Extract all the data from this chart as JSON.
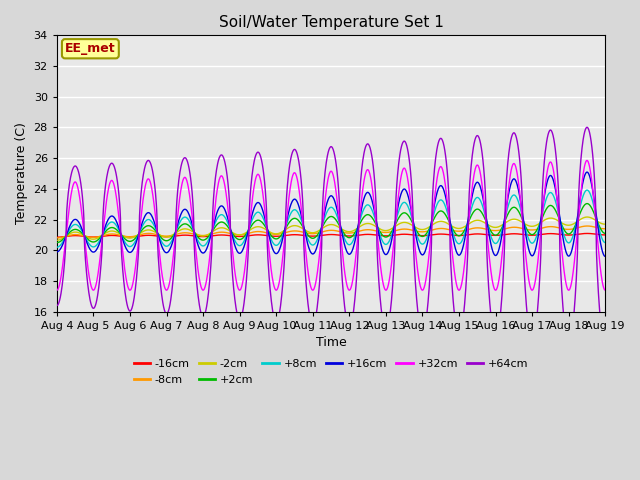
{
  "title": "Soil/Water Temperature Set 1",
  "xlabel": "Time",
  "ylabel": "Temperature (C)",
  "ylim": [
    16,
    34
  ],
  "yticks": [
    16,
    18,
    20,
    22,
    24,
    26,
    28,
    30,
    32,
    34
  ],
  "series_colors": {
    "-16cm": "#ff0000",
    "-8cm": "#ff9900",
    "-2cm": "#cccc00",
    "+2cm": "#00bb00",
    "+8cm": "#00cccc",
    "+16cm": "#0000dd",
    "+32cm": "#ff00ff",
    "+64cm": "#9900cc"
  },
  "watermark": "EE_met",
  "fig_bg": "#d8d8d8",
  "plot_bg": "#e8e8e8",
  "grid_color": "#ffffff",
  "xtick_labels": [
    "Aug 4",
    "Aug 5",
    "Aug 6",
    "Aug 7",
    "Aug 8",
    "Aug 9",
    "Aug 10",
    "Aug 11",
    "Aug 12",
    "Aug 13",
    "Aug 14",
    "Aug 15",
    "Aug 16",
    "Aug 17",
    "Aug 18",
    "Aug 19"
  ],
  "xtick_positions": [
    4,
    5,
    6,
    7,
    8,
    9,
    10,
    11,
    12,
    13,
    14,
    15,
    16,
    17,
    18,
    19
  ]
}
